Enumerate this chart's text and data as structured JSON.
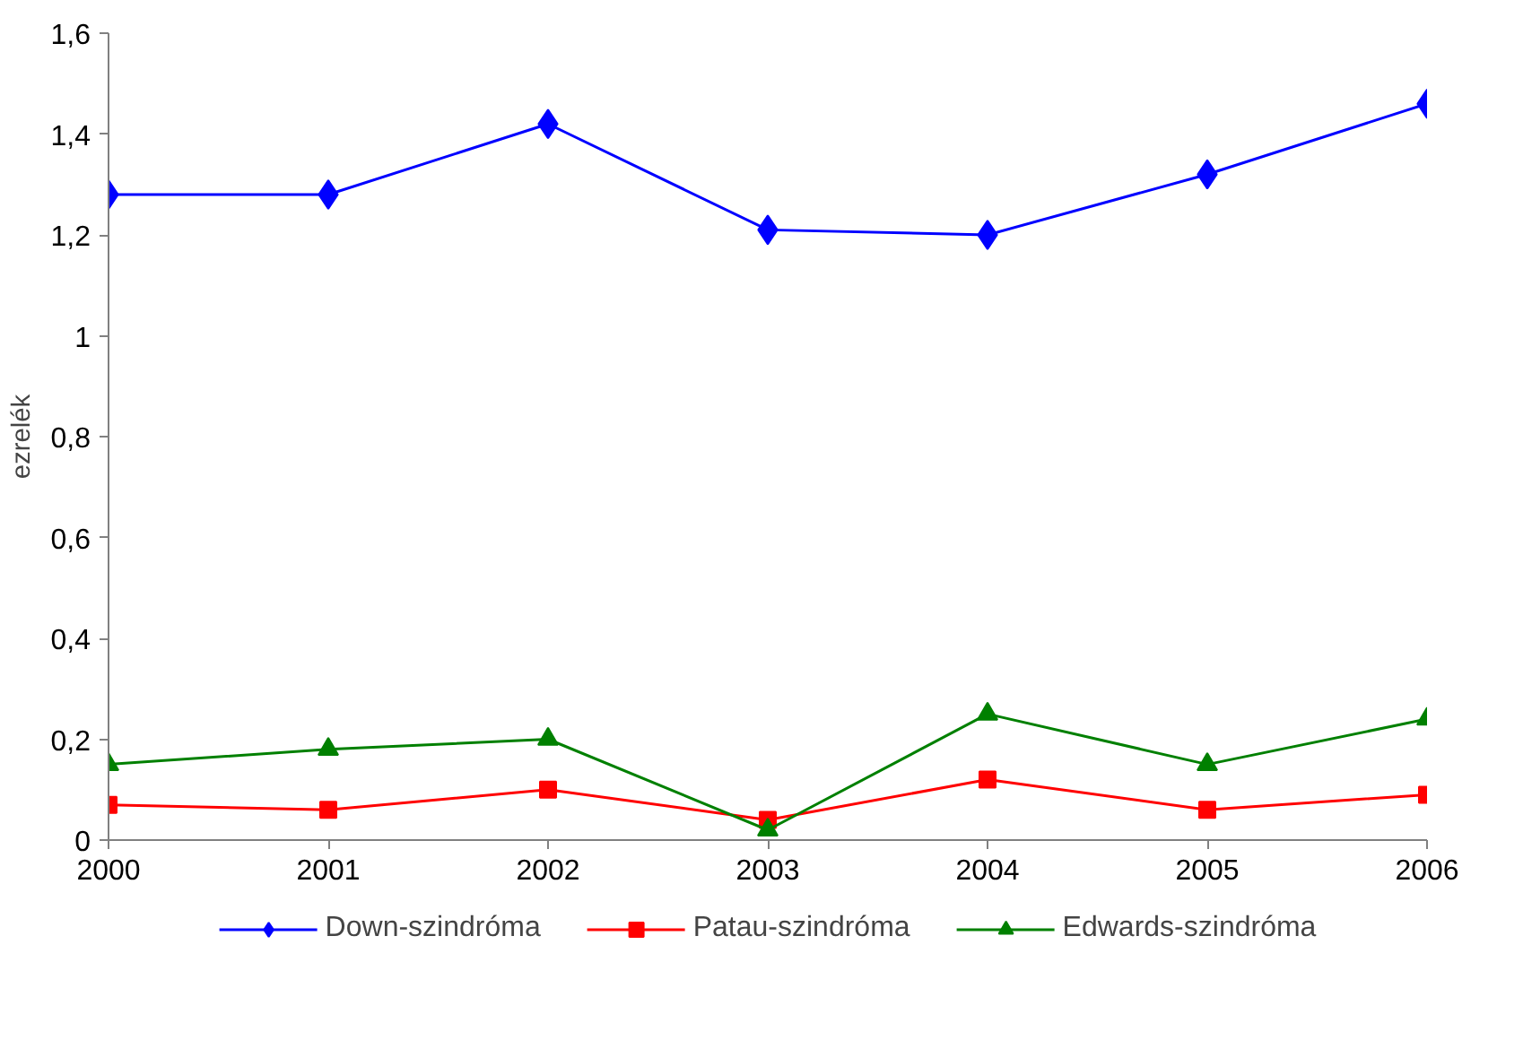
{
  "chart_data": {
    "type": "line",
    "ylabel": "ezrelék",
    "x": [
      2000,
      2001,
      2002,
      2003,
      2004,
      2005,
      2006
    ],
    "series": [
      {
        "name": "Down-szindróma",
        "color": "#0000ff",
        "marker": "diamond",
        "values": [
          1.28,
          1.28,
          1.42,
          1.21,
          1.2,
          1.32,
          1.46
        ]
      },
      {
        "name": "Patau-szindróma",
        "color": "#ff0000",
        "marker": "square",
        "values": [
          0.07,
          0.06,
          0.1,
          0.04,
          0.12,
          0.06,
          0.09
        ]
      },
      {
        "name": "Edwards-szindróma",
        "color": "#008000",
        "marker": "triangle",
        "values": [
          0.15,
          0.18,
          0.2,
          0.02,
          0.25,
          0.15,
          0.24
        ]
      }
    ],
    "xlim": [
      2000,
      2006
    ],
    "xticks": [
      2000,
      2001,
      2002,
      2003,
      2004,
      2005,
      2006
    ],
    "ylim": [
      0,
      1.6
    ],
    "yticks": [
      {
        "value": 0,
        "label": "0"
      },
      {
        "value": 0.2,
        "label": "0,2"
      },
      {
        "value": 0.4,
        "label": "0,4"
      },
      {
        "value": 0.6,
        "label": "0,6"
      },
      {
        "value": 0.8,
        "label": "0,8"
      },
      {
        "value": 1,
        "label": "1"
      },
      {
        "value": 1.2,
        "label": "1,2"
      },
      {
        "value": 1.4,
        "label": "1,4"
      },
      {
        "value": 1.6,
        "label": "1,6"
      }
    ],
    "grid": false,
    "legend": "bottom",
    "line_style": "solid"
  }
}
